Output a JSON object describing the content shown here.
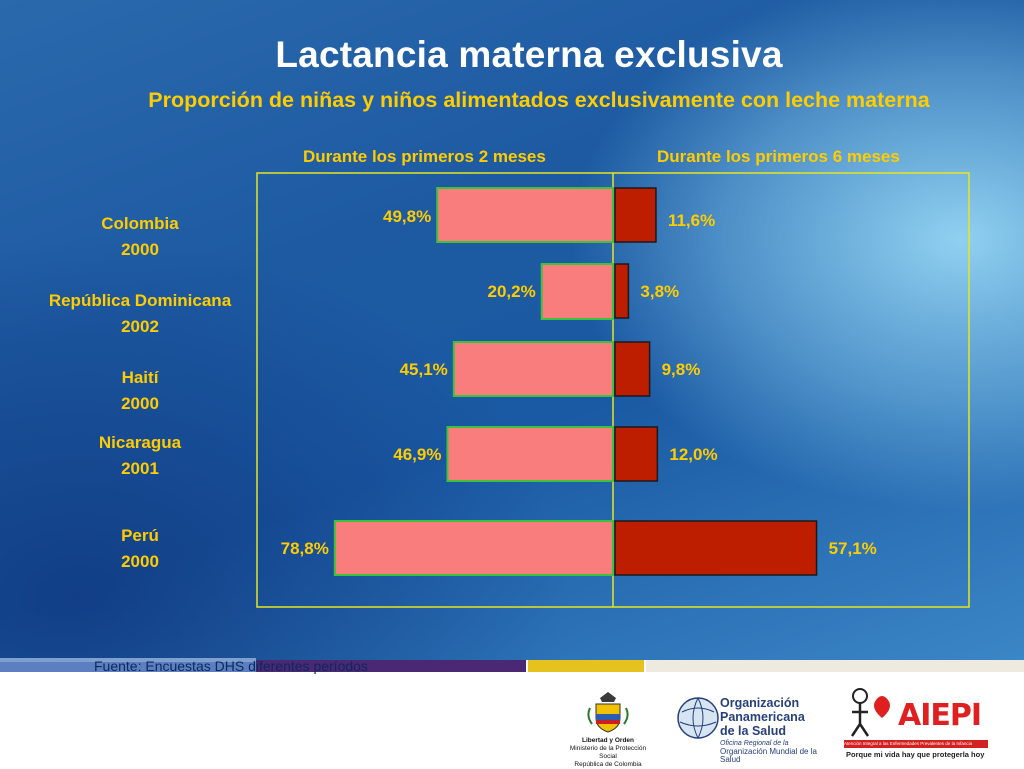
{
  "slide": {
    "title": "Lactancia materna exclusiva",
    "subtitle": "Proporción de niñas y niños alimentados exclusivamente con leche materna",
    "source": "Fuente: Encuestas DHS diferentes períodos"
  },
  "colors": {
    "left_bar": "#fa7d7d",
    "right_bar": "#be1e00",
    "bar_border_left": "#3dc23d",
    "bar_border_right": "#1a1a1a",
    "frame": "#e6e61e",
    "label": "#ffcc00"
  },
  "chart_data": {
    "type": "bar",
    "orientation": "horizontal-butterfly",
    "categories": [
      "Colombia\n2000",
      "República Dominicana\n2002",
      "Haití\n2000",
      "Nicaragua\n2001",
      "Perú\n2000"
    ],
    "category_lines": [
      [
        "Colombia",
        "2000"
      ],
      [
        "República Dominicana",
        "2002"
      ],
      [
        "Haití",
        "2000"
      ],
      [
        "Nicaragua",
        "2001"
      ],
      [
        "Perú",
        "2000"
      ]
    ],
    "series": [
      {
        "name": "Durante los primeros 2 meses",
        "values": [
          49.8,
          20.2,
          45.1,
          46.9,
          78.8
        ],
        "labels": [
          "49,8%",
          "20,2%",
          "45,1%",
          "46,9%",
          "78,8%"
        ]
      },
      {
        "name": "Durante los primeros 6 meses",
        "values": [
          11.6,
          3.8,
          9.8,
          12.0,
          57.1
        ],
        "labels": [
          "11,6%",
          "3,8%",
          "9,8%",
          "12,0%",
          "57,1%"
        ]
      }
    ]
  },
  "logos": {
    "colombia_lines": [
      "Libertad y Orden",
      "Ministerio de la Protección Social",
      "República de Colombia"
    ],
    "ops_name": "Organización\nPanamericana\nde la Salud",
    "oms_lines": [
      "Oficina Regional de la",
      "Organización Mundial de la Salud"
    ],
    "aiepi_word": "AIEPI",
    "aiepi_strip": "Atención Integral a las Enfermedades Prevalentes de la Infancia",
    "aiepi_tag": "Porque mi vida hay que protegerla hoy"
  }
}
